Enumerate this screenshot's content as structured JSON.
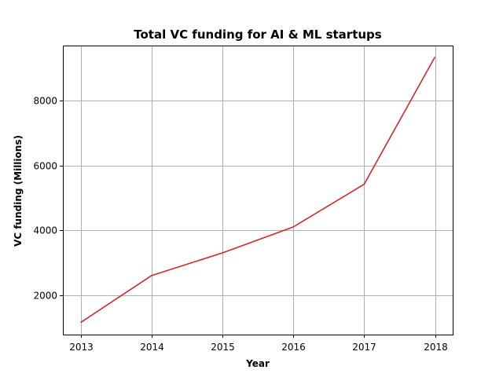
{
  "chart_data": {
    "type": "line",
    "title": "Total VC funding for AI & ML startups",
    "xlabel": "Year",
    "ylabel": "VC funding (Millions)",
    "x": [
      "2013",
      "2014",
      "2015",
      "2016",
      "2017",
      "2018"
    ],
    "series": [
      {
        "values": [
          1150,
          2600,
          3300,
          4100,
          5420,
          9350
        ],
        "color": "#d62728"
      }
    ],
    "ylim": [
      780,
      9700
    ],
    "yticks": [
      2000,
      4000,
      6000,
      8000
    ],
    "grid": true,
    "legend": false
  }
}
